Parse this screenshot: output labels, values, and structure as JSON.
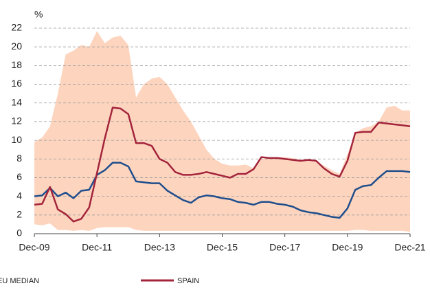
{
  "chart_data": {
    "type": "line",
    "y_unit_label": "%",
    "categories": [
      "Dec-09",
      null,
      null,
      null,
      null,
      null,
      null,
      null,
      "Dec-11",
      null,
      null,
      null,
      null,
      null,
      null,
      null,
      "Dec-13",
      null,
      null,
      null,
      null,
      null,
      null,
      null,
      "Dec-15",
      null,
      null,
      null,
      null,
      null,
      null,
      null,
      "Dec-17",
      null,
      null,
      null,
      null,
      null,
      null,
      null,
      "Dec-19",
      null,
      null,
      null,
      null,
      null,
      null,
      null,
      "Dec-21"
    ],
    "band": {
      "color": "#fdd5bf",
      "upper": [
        9.8,
        10.3,
        11.5,
        15.0,
        19.2,
        19.6,
        20.2,
        20.0,
        21.7,
        20.4,
        21.0,
        21.2,
        20.2,
        14.6,
        16.0,
        16.6,
        16.8,
        16.0,
        14.6,
        13.2,
        12.0,
        10.5,
        9.0,
        8.0,
        7.5,
        7.3,
        7.3,
        7.4,
        7.0,
        8.0,
        8.1,
        8.2,
        8.2,
        8.1,
        7.9,
        7.8,
        7.7,
        7.3,
        6.8,
        6.4,
        8.5,
        10.8,
        11.3,
        11.5,
        12.0,
        13.5,
        13.7,
        13.2,
        13.2
      ],
      "lower": [
        1.0,
        0.9,
        1.1,
        0.4,
        0.4,
        0.3,
        0.4,
        0.3,
        0.6,
        0.7,
        0.7,
        0.7,
        0.7,
        0.4,
        0.3,
        0.3,
        0.3,
        0.3,
        0.3,
        0.3,
        0.3,
        0.3,
        0.3,
        0.3,
        0.3,
        0.3,
        0.3,
        0.3,
        0.3,
        0.3,
        0.3,
        0.3,
        0.3,
        0.3,
        0.3,
        0.3,
        0.3,
        0.3,
        0.3,
        0.3,
        0.3,
        0.4,
        0.4,
        0.3,
        0.3,
        0.3,
        0.3,
        0.3,
        0.2
      ]
    },
    "series": [
      {
        "name": "EU MEDIAN",
        "color": "#1f4e8c",
        "values": [
          4.0,
          4.1,
          4.9,
          4.0,
          4.4,
          3.8,
          4.6,
          4.7,
          6.3,
          6.8,
          7.6,
          7.6,
          7.2,
          5.6,
          5.5,
          5.4,
          5.4,
          4.6,
          4.1,
          3.6,
          3.3,
          3.9,
          4.1,
          4.0,
          3.8,
          3.7,
          3.4,
          3.3,
          3.1,
          3.4,
          3.4,
          3.2,
          3.1,
          2.9,
          2.5,
          2.3,
          2.2,
          2.0,
          1.8,
          1.7,
          2.7,
          4.7,
          5.1,
          5.2,
          6.0,
          6.7,
          6.7,
          6.7,
          6.6
        ]
      },
      {
        "name": "SPAIN",
        "color": "#a3243b",
        "values": [
          3.1,
          3.2,
          5.0,
          2.6,
          2.1,
          1.3,
          1.6,
          2.8,
          6.5,
          10.2,
          13.5,
          13.4,
          12.8,
          9.7,
          9.7,
          9.4,
          8.0,
          7.6,
          6.6,
          6.3,
          6.3,
          6.4,
          6.6,
          6.4,
          6.2,
          6.0,
          6.4,
          6.4,
          6.9,
          8.2,
          8.1,
          8.1,
          8.0,
          7.9,
          7.8,
          7.9,
          7.8,
          7.0,
          6.4,
          6.1,
          7.8,
          10.8,
          10.9,
          10.9,
          11.9,
          11.8,
          11.7,
          11.6,
          11.5
        ]
      }
    ],
    "ylim": [
      0,
      22
    ],
    "yticks": [
      0,
      2,
      4,
      6,
      8,
      10,
      12,
      14,
      16,
      18,
      20,
      22
    ],
    "grid": true
  }
}
